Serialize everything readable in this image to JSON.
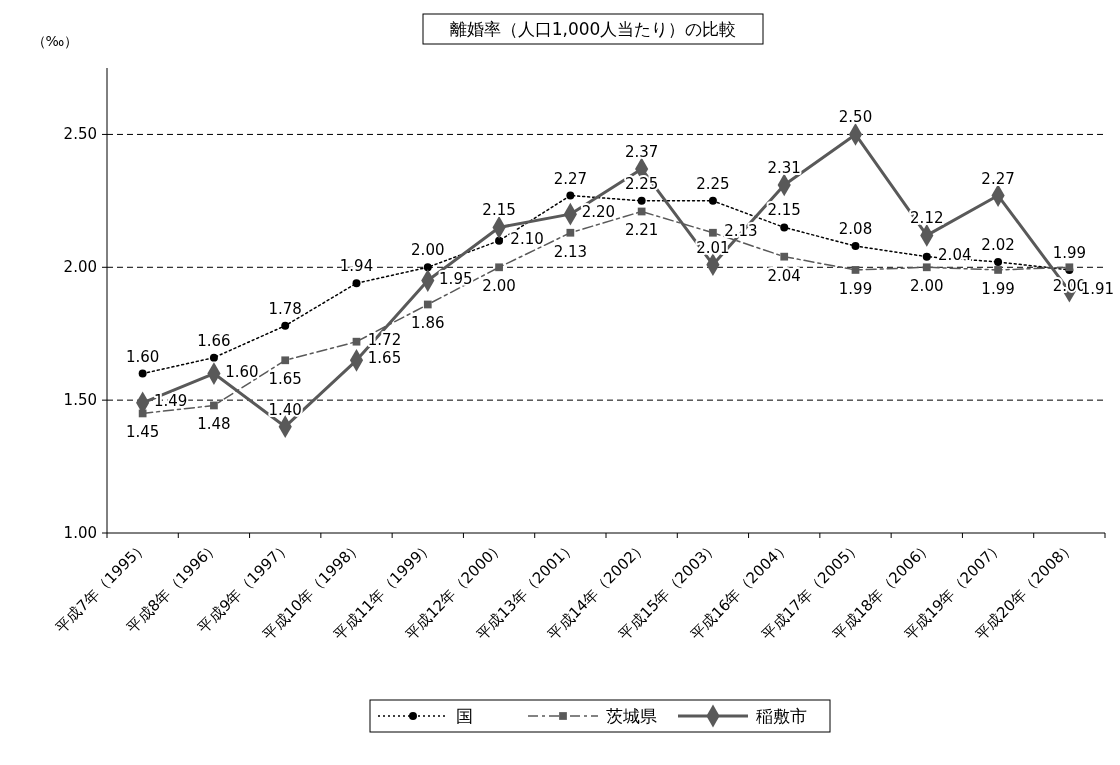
{
  "chart_data": {
    "type": "line",
    "title": "離婚率（人口1,000人当たり）の比較",
    "ylabel": "（‰）",
    "categories": [
      "平成7年（1995）",
      "平成8年（1996）",
      "平成9年（1997）",
      "平成10年（1998）",
      "平成11年（1999）",
      "平成12年（2000）",
      "平成13年（2001）",
      "平成14年（2002）",
      "平成15年（2003）",
      "平成16年（2004）",
      "平成17年（2005）",
      "平成18年（2006）",
      "平成19年（2007）",
      "平成20年（2008）"
    ],
    "series": [
      {
        "name": "国",
        "color": "#000000",
        "line_style": "dotted",
        "marker": "circle",
        "values": [
          1.6,
          1.66,
          1.78,
          1.94,
          2.0,
          2.1,
          2.27,
          2.25,
          2.25,
          2.15,
          2.08,
          2.04,
          2.02,
          1.99
        ],
        "value_labels": [
          "1.60",
          "1.66",
          "1.78",
          "1.94",
          "2.00",
          "2.10",
          "2.27",
          "2.25",
          "2.25",
          "2.15",
          "2.08",
          "2.04",
          "2.02",
          "1.99"
        ]
      },
      {
        "name": "茨城県",
        "color": "#595959",
        "line_style": "dashed",
        "marker": "square",
        "values": [
          1.45,
          1.48,
          1.65,
          1.72,
          1.86,
          2.0,
          2.13,
          2.21,
          2.13,
          2.04,
          1.99,
          2.0,
          1.99,
          2.0
        ],
        "value_labels": [
          "1.45",
          "1.48",
          "1.65",
          "1.72",
          "1.86",
          "2.00",
          "2.13",
          "2.21",
          "2.13",
          "2.04",
          "1.99",
          "2.00",
          "1.99",
          "2.00"
        ]
      },
      {
        "name": "稲敷市",
        "color": "#595959",
        "line_style": "solid",
        "marker": "diamond",
        "values": [
          1.49,
          1.6,
          1.4,
          1.65,
          1.95,
          2.15,
          2.2,
          2.37,
          2.01,
          2.31,
          2.5,
          2.12,
          2.27,
          1.91
        ],
        "value_labels": [
          "1.49",
          "1.60",
          "1.40",
          "1.65",
          "1.95",
          "2.15",
          "2.20",
          "2.37",
          "2.01",
          "2.31",
          "2.50",
          "2.12",
          "2.27",
          "1.91"
        ]
      }
    ],
    "ylim": [
      1,
      2.75
    ],
    "yticks": [
      {
        "value": 1,
        "label": "1.00"
      },
      {
        "value": 1.5,
        "label": "1.50"
      },
      {
        "value": 2,
        "label": "2.00"
      },
      {
        "value": 2.5,
        "label": "2.50"
      }
    ],
    "grid": "y",
    "legend": "bottom"
  }
}
